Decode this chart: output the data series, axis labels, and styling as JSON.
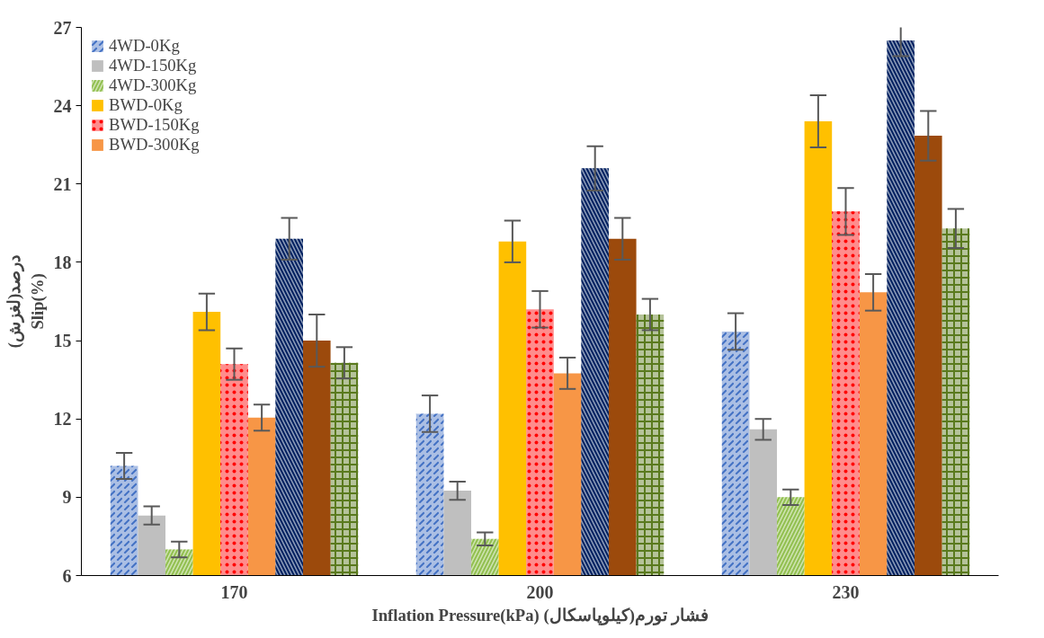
{
  "chart_data": {
    "type": "bar",
    "xlabel": "Inflation Pressure(kPa) فشار تورم(کیلوپاسکال)",
    "ylabel": "درصد(لغزش)\nSlip(%)",
    "categories": [
      "170",
      "200",
      "230"
    ],
    "series": [
      {
        "name": "4WD-0Kg",
        "color": "#4472c4",
        "values": [
          10.2,
          12.2,
          15.35
        ],
        "errors": [
          0.5,
          0.7,
          0.7
        ]
      },
      {
        "name": "4WD-150Kg",
        "color": "#bfbfbf",
        "values": [
          8.3,
          9.25,
          11.6
        ],
        "errors": [
          0.35,
          0.35,
          0.4
        ]
      },
      {
        "name": "4WD-300Kg",
        "color": "#92c050",
        "values": [
          7.0,
          7.4,
          9.0
        ],
        "errors": [
          0.3,
          0.25,
          0.3
        ]
      },
      {
        "name": "BWD-0Kg",
        "color": "#ffc000",
        "values": [
          16.1,
          18.8,
          23.4
        ],
        "errors": [
          0.7,
          0.8,
          1.0
        ]
      },
      {
        "name": "BWD-150Kg",
        "color": "#ff0000",
        "values": [
          14.1,
          16.2,
          19.95
        ],
        "errors": [
          0.6,
          0.7,
          0.9
        ]
      },
      {
        "name": "BWD-300Kg",
        "color": "#f79646",
        "values": [
          12.05,
          13.75,
          16.85
        ],
        "errors": [
          0.5,
          0.6,
          0.7
        ]
      },
      {
        "color": "#002060",
        "values": [
          18.9,
          21.6,
          26.5
        ],
        "errors": [
          0.8,
          0.85,
          0.6
        ]
      },
      {
        "color": "#9c4a0c",
        "values": [
          15.0,
          18.9,
          22.85
        ],
        "errors": [
          1.0,
          0.8,
          0.95
        ]
      },
      {
        "color": "#5a7a1e",
        "values": [
          14.15,
          16.0,
          19.3
        ],
        "errors": [
          0.6,
          0.6,
          0.75
        ]
      }
    ],
    "ylim": [
      6,
      27
    ],
    "yticks": [
      6,
      9,
      12,
      15,
      18,
      21,
      24,
      27
    ],
    "grid": false,
    "legend": "top left"
  }
}
